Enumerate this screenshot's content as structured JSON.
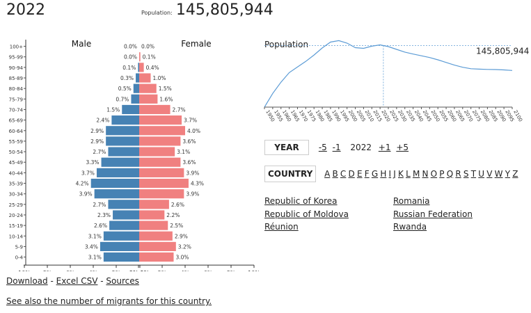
{
  "header": {
    "year": "2022",
    "population_label": "Population:",
    "population_value": "145,805,944"
  },
  "chart_data": [
    {
      "type": "bar",
      "orientation": "horizontal",
      "subtype": "population-pyramid",
      "categories": [
        "100+",
        "95-99",
        "90-94",
        "85-89",
        "80-84",
        "75-79",
        "70-74",
        "65-69",
        "60-64",
        "55-59",
        "50-54",
        "45-49",
        "40-44",
        "35-39",
        "30-34",
        "25-29",
        "20-24",
        "15-19",
        "10-14",
        "5-9",
        "0-4"
      ],
      "series": [
        {
          "name": "Male",
          "color": "#4682b4",
          "values": [
            0.0,
            0.0,
            0.1,
            0.3,
            0.5,
            0.7,
            1.5,
            2.4,
            2.9,
            2.9,
            2.7,
            3.3,
            3.7,
            4.2,
            3.9,
            2.7,
            2.3,
            2.6,
            3.1,
            3.4,
            3.1
          ],
          "labels": [
            "0.0%",
            "0.0%",
            "0.1%",
            "0.3%",
            "0.5%",
            "0.7%",
            "1.5%",
            "2.4%",
            "2.9%",
            "2.9%",
            "2.7%",
            "3.3%",
            "3.7%",
            "4.2%",
            "3.9%",
            "2.7%",
            "2.3%",
            "2.6%",
            "3.1%",
            "3.4%",
            "3.1%"
          ]
        },
        {
          "name": "Female",
          "color": "#f08080",
          "values": [
            0.0,
            0.1,
            0.4,
            1.0,
            1.5,
            1.6,
            2.7,
            3.7,
            4.0,
            3.6,
            3.1,
            3.6,
            3.9,
            4.3,
            3.9,
            2.6,
            2.2,
            2.5,
            2.9,
            3.2,
            3.0
          ],
          "labels": [
            "0.0%",
            "0.1%",
            "0.4%",
            "1.0%",
            "1.5%",
            "1.6%",
            "2.7%",
            "3.7%",
            "4.0%",
            "3.6%",
            "3.1%",
            "3.6%",
            "3.9%",
            "4.3%",
            "3.9%",
            "2.6%",
            "2.2%",
            "2.5%",
            "2.9%",
            "3.2%",
            "3.0%"
          ]
        }
      ],
      "xlim": [
        -10,
        10
      ],
      "xticks": [
        "10%",
        "8%",
        "6%",
        "4%",
        "2%",
        "0%",
        "0%",
        "2%",
        "4%",
        "6%",
        "8%",
        "10%"
      ]
    },
    {
      "type": "line",
      "title": "Population",
      "x": [
        1950,
        1955,
        1960,
        1965,
        1970,
        1975,
        1980,
        1985,
        1990,
        1995,
        2000,
        2005,
        2010,
        2015,
        2020,
        2025,
        2030,
        2035,
        2040,
        2045,
        2050,
        2055,
        2060,
        2065,
        2070,
        2075,
        2080,
        2085,
        2090,
        2095,
        2100
      ],
      "y": [
        102.8,
        112.2,
        119.9,
        126.5,
        130.4,
        134.2,
        138.6,
        143.5,
        147.5,
        148.5,
        146.8,
        143.7,
        143.2,
        144.7,
        145.6,
        144.4,
        142.5,
        140.6,
        139.3,
        138.1,
        136.9,
        135.3,
        133.5,
        131.7,
        130.2,
        129.2,
        128.9,
        128.7,
        128.6,
        128.4,
        128.0
      ],
      "yunit": "millions",
      "ylim": [
        102.8,
        148.7
      ],
      "xticks": [
        "1950",
        "1955",
        "1960",
        "1965",
        "1970",
        "1975",
        "1980",
        "1985",
        "1990",
        "1995",
        "2000",
        "2005",
        "2010",
        "2015",
        "2020",
        "2025",
        "2030",
        "2035",
        "2040",
        "2045",
        "2050",
        "2055",
        "2060",
        "2065",
        "2070",
        "2075",
        "2080",
        "2085",
        "2090",
        "2095",
        "2100"
      ],
      "current_year": 2022,
      "current_label": "145,805,944",
      "line_color": "#5b9bd5"
    }
  ],
  "year_nav": {
    "label": "YEAR",
    "minus5": "-5",
    "minus1": "-1",
    "current": "2022",
    "plus1": "+1",
    "plus5": "+5"
  },
  "country_nav": {
    "label": "COUNTRY",
    "letters": [
      "A",
      "B",
      "C",
      "D",
      "E",
      "F",
      "G",
      "H",
      "I",
      "J",
      "K",
      "L",
      "M",
      "N",
      "O",
      "P",
      "Q",
      "R",
      "S",
      "T",
      "U",
      "V",
      "W",
      "Y",
      "Z"
    ]
  },
  "countries": {
    "col1": [
      "Republic of Korea",
      "Republic of Moldova",
      "Réunion"
    ],
    "col2": [
      "Romania",
      "Russian Federation",
      "Rwanda"
    ]
  },
  "footer": {
    "download": "Download",
    "sep1": " - ",
    "excel": "Excel CSV",
    "sep2": " - ",
    "sources": "Sources",
    "migrants": "See also the number of migrants for this country."
  }
}
